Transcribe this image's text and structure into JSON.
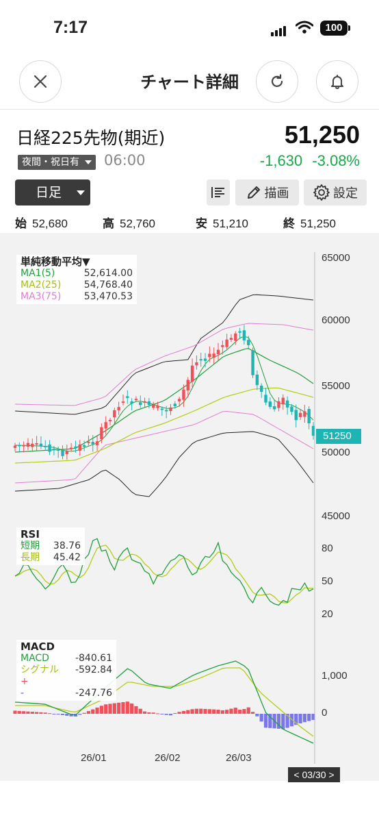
{
  "status_bar": {
    "time": "7:17",
    "battery": "100"
  },
  "header": {
    "title": "チャート詳細"
  },
  "quote": {
    "name": "日経225先物(期近)",
    "price": "51,250",
    "session": "夜間・祝日有",
    "time": "06:00",
    "change": "-1,630",
    "change_pct": "-3.08%"
  },
  "toolbar": {
    "period": "日足",
    "draw_label": "描画",
    "settings_label": "設定"
  },
  "ohlc": {
    "open_label": "始",
    "open": "52,680",
    "high_label": "高",
    "high": "52,760",
    "low_label": "安",
    "low": "51,210",
    "close_label": "終",
    "close": "51,250"
  },
  "main_chart": {
    "legend_title": "単純移動平均▼",
    "ma1_label": "MA1(5)",
    "ma1_value": "52,614.00",
    "ma2_label": "MA2(25)",
    "ma2_value": "54,768.40",
    "ma3_label": "MA3(75)",
    "ma3_value": "53,470.53",
    "y_ticks": [
      "65000",
      "60000",
      "55000",
      "50000",
      "45000"
    ],
    "last_price_tag": "51250"
  },
  "rsi": {
    "title": "RSI",
    "short_label": "短期",
    "short_value": "38.76",
    "long_label": "長期",
    "long_value": "45.42",
    "y_ticks": [
      "80",
      "50",
      "20"
    ]
  },
  "macd": {
    "title": "MACD",
    "macd_label": "MACD",
    "macd_value": "-840.61",
    "signal_label": "シグナル",
    "signal_value": "-592.84",
    "plus_label": "+",
    "minus_label": "-",
    "hist_value": "-247.76",
    "y_ticks": [
      "1,000",
      "0"
    ]
  },
  "x_axis": {
    "dates": [
      "26/01",
      "26/02",
      "26/03"
    ],
    "cursor_label": "< 03/30 >"
  },
  "colors": {
    "up": "#f0505a",
    "down": "#1fb4b4",
    "ma1": "#1f9e3a",
    "ma2": "#b5cc12",
    "ma3": "#e07cd0",
    "bb_outer": "#222222",
    "bb_mid": "#e07cd0",
    "positive": "#19a84a",
    "histo_pos": "#f0505a",
    "histo_neg": "#7a78e8"
  }
}
